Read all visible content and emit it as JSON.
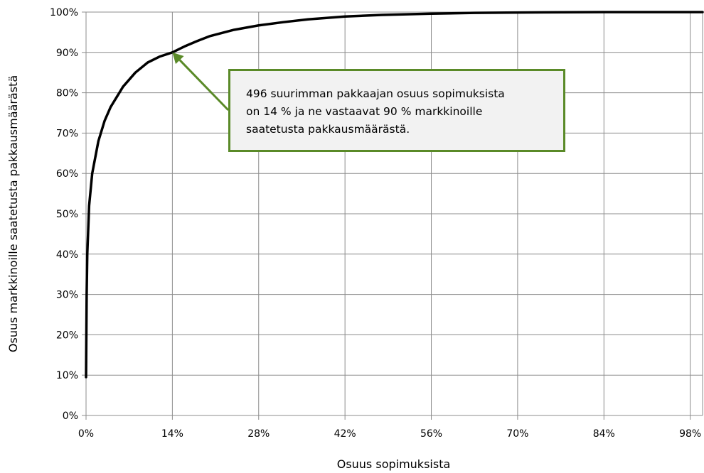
{
  "chart_data": {
    "type": "line",
    "xlabel": "Osuus sopimuksista",
    "ylabel": "Osuus markkinoille saatetusta pakkausmäärästä",
    "xlim": [
      0,
      100
    ],
    "ylim": [
      0,
      100
    ],
    "x_ticks": [
      "0%",
      "14%",
      "28%",
      "42%",
      "56%",
      "70%",
      "84%",
      "98%"
    ],
    "x_tick_values": [
      0,
      14,
      28,
      42,
      56,
      70,
      84,
      98
    ],
    "y_ticks": [
      "0%",
      "10%",
      "20%",
      "30%",
      "40%",
      "50%",
      "60%",
      "70%",
      "80%",
      "90%",
      "100%"
    ],
    "y_tick_values": [
      0,
      10,
      20,
      30,
      40,
      50,
      60,
      70,
      80,
      90,
      100
    ],
    "grid": true,
    "series": [
      {
        "x": [
          0,
          0.1,
          0.2,
          0.5,
          1,
          2,
          3,
          4,
          5,
          6,
          8,
          10,
          12,
          14,
          16,
          18,
          20,
          24,
          28,
          32,
          36,
          42,
          48,
          56,
          63,
          70,
          84,
          98,
          100
        ],
        "y": [
          9.5,
          30,
          40,
          52,
          60,
          68,
          73,
          76.5,
          79,
          81.5,
          85,
          87.5,
          89,
          90,
          91.5,
          92.8,
          94,
          95.6,
          96.7,
          97.5,
          98.2,
          98.9,
          99.3,
          99.6,
          99.8,
          99.9,
          100,
          100,
          100
        ],
        "color": "#000000"
      }
    ],
    "annotation": {
      "lines": [
        "496 suurimman pakkaajan osuus sopimuksista",
        "on 14 % ja ne vastaavat 90 % markkinoille",
        "saatetusta pakkausmäärästä."
      ],
      "target": {
        "x": 14,
        "y": 90
      },
      "border_color": "#5a8a28",
      "fill_color": "#f2f2f2",
      "arrow_color": "#5a8a28"
    }
  }
}
